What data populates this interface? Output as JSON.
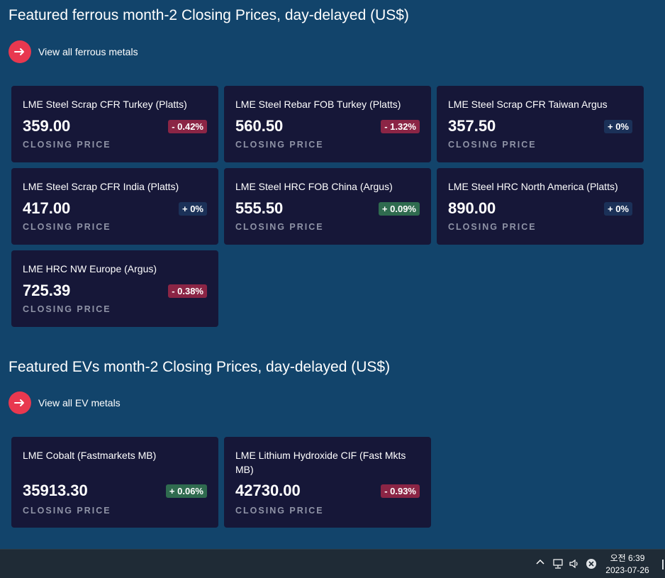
{
  "ferrous": {
    "title": "Featured ferrous month-2 Closing Prices, day-delayed (US$)",
    "view_all_label": "View all ferrous metals",
    "cards": [
      {
        "name": "LME Steel Scrap CFR Turkey (Platts)",
        "price": "359.00",
        "change": "- 0.42%",
        "direction": "down",
        "label": "CLOSING PRICE"
      },
      {
        "name": "LME Steel Rebar FOB Turkey (Platts)",
        "price": "560.50",
        "change": "- 1.32%",
        "direction": "down",
        "label": "CLOSING PRICE"
      },
      {
        "name": "LME Steel Scrap CFR Taiwan Argus",
        "price": "357.50",
        "change": "+ 0%",
        "direction": "flat",
        "label": "CLOSING PRICE"
      },
      {
        "name": "LME Steel Scrap CFR India (Platts)",
        "price": "417.00",
        "change": "+ 0%",
        "direction": "flat",
        "label": "CLOSING PRICE"
      },
      {
        "name": "LME Steel HRC FOB China (Argus)",
        "price": "555.50",
        "change": "+ 0.09%",
        "direction": "up",
        "label": "CLOSING PRICE"
      },
      {
        "name": "LME Steel HRC North America (Platts)",
        "price": "890.00",
        "change": "+ 0%",
        "direction": "flat",
        "label": "CLOSING PRICE"
      },
      {
        "name": "LME HRC NW Europe (Argus)",
        "price": "725.39",
        "change": "- 0.38%",
        "direction": "down",
        "label": "CLOSING PRICE"
      }
    ]
  },
  "evs": {
    "title": "Featured EVs month-2 Closing Prices, day-delayed (US$)",
    "view_all_label": "View all EV metals",
    "cards": [
      {
        "name": "LME Cobalt (Fastmarkets MB)",
        "price": "35913.30",
        "change": "+ 0.06%",
        "direction": "up",
        "label": "CLOSING PRICE"
      },
      {
        "name": "LME Lithium Hydroxide CIF (Fast Mkts MB)",
        "price": "42730.00",
        "change": "- 0.93%",
        "direction": "down",
        "label": "CLOSING PRICE"
      }
    ]
  },
  "taskbar": {
    "time": "오전 6:39",
    "date": "2023-07-26",
    "icons": [
      "chevron-up-icon",
      "network-icon",
      "volume-icon",
      "close-circle-icon"
    ]
  },
  "colors": {
    "background": "#12446b",
    "card": "#161738",
    "accent_red": "#e8384f",
    "down": "#8b2545",
    "up": "#2f6b4f",
    "flat": "#1b3158"
  }
}
